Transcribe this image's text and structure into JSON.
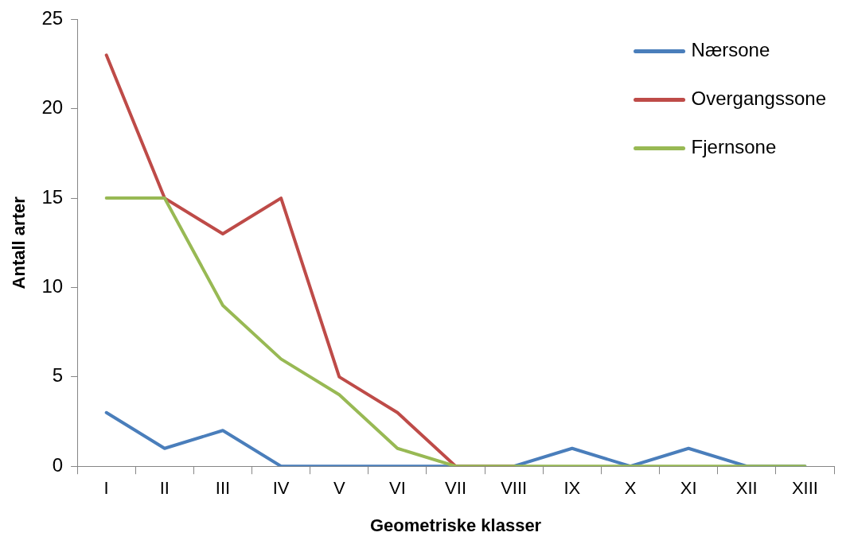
{
  "chart_data": {
    "type": "line",
    "xlabel": "Geometriske klasser",
    "ylabel": "Antall arter",
    "categories": [
      "I",
      "II",
      "III",
      "IV",
      "V",
      "VI",
      "VII",
      "VIII",
      "IX",
      "X",
      "XI",
      "XII",
      "XIII"
    ],
    "series": [
      {
        "name": "Nærsone",
        "color": "#4a7ebb",
        "values": [
          3,
          1,
          2,
          0,
          0,
          0,
          0,
          0,
          1,
          0,
          1,
          0,
          0
        ]
      },
      {
        "name": "Overgangssone",
        "color": "#be4b48",
        "values": [
          23,
          15,
          13,
          15,
          5,
          3,
          0,
          0,
          null,
          null,
          null,
          null,
          null
        ]
      },
      {
        "name": "Fjernsone",
        "color": "#98b954",
        "values": [
          15,
          15,
          9,
          6,
          4,
          1,
          0,
          0,
          0,
          0,
          0,
          0,
          0
        ]
      }
    ],
    "ylim": [
      0,
      25
    ],
    "yticks": [
      0,
      5,
      10,
      15,
      20,
      25
    ],
    "grid": false,
    "legend": "top right",
    "marker": "none",
    "line_style": "solid"
  }
}
